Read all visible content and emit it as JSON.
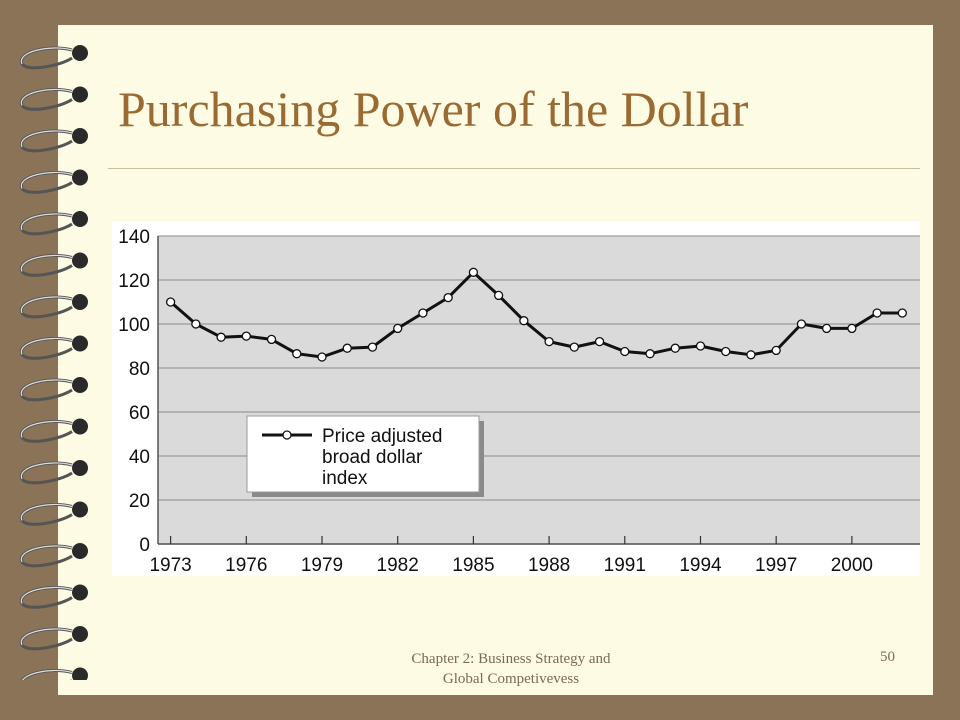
{
  "slide": {
    "title": "Purchasing Power of the Dollar",
    "footer_line1": "Chapter 2: Business Strategy and",
    "footer_line2": "Global Competivevess",
    "page_number": "50"
  },
  "colors": {
    "background": "#8b7358",
    "slide": "#fdfbe3",
    "title": "#9a6a32",
    "plot_background": "#dadada",
    "line": "#111111"
  },
  "chart_data": {
    "type": "line",
    "title": "",
    "xlabel": "",
    "ylabel": "",
    "ylim": [
      0,
      140
    ],
    "yticks": [
      0,
      20,
      40,
      60,
      80,
      100,
      120,
      140
    ],
    "xticks": [
      "1973",
      "1976",
      "1979",
      "1982",
      "1985",
      "1988",
      "1991",
      "1994",
      "1997",
      "2000"
    ],
    "grid": "horizontal",
    "legend_position": "lower-left",
    "series": [
      {
        "name": "Price adjusted broad dollar index",
        "legend_lines": [
          "Price adjusted",
          "broad dollar",
          "index"
        ],
        "marker": "open-circle",
        "x": [
          1973,
          1974,
          1975,
          1976,
          1977,
          1978,
          1979,
          1980,
          1981,
          1982,
          1983,
          1984,
          1985,
          1986,
          1987,
          1988,
          1989,
          1990,
          1991,
          1992,
          1993,
          1994,
          1995,
          1996,
          1997,
          1998,
          1999,
          2000,
          2001,
          2002
        ],
        "values": [
          110,
          100,
          94,
          94.5,
          93,
          86.5,
          85,
          89,
          89.5,
          98,
          105,
          112,
          123.5,
          113,
          101.5,
          92,
          89.5,
          92,
          87.5,
          86.5,
          89,
          90,
          87.5,
          86,
          88,
          100,
          98,
          98,
          105,
          105
        ]
      }
    ]
  }
}
